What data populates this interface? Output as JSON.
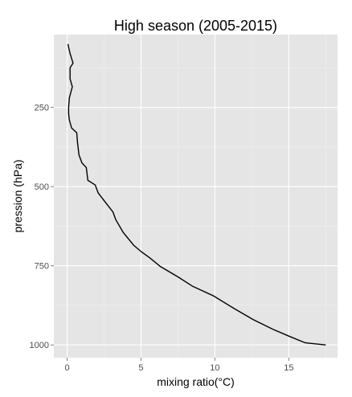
{
  "chart_data": {
    "type": "line",
    "title": "High season (2005-2015)",
    "xlabel": "mixing ratio(°C)",
    "ylabel": "pression (hPa)",
    "xlim": [
      -0.9,
      18.3
    ],
    "ylim": [
      1040,
      20
    ],
    "y_reversed": true,
    "x_ticks": [
      "0",
      "5",
      "10",
      "15"
    ],
    "x_tick_values": [
      0,
      5,
      10,
      15
    ],
    "y_ticks": [
      "250",
      "500",
      "750",
      "1000"
    ],
    "y_tick_values": [
      250,
      500,
      750,
      1000
    ],
    "grid": true,
    "background": "#e5e5e5",
    "line_color": "#000000",
    "series": [
      {
        "x": [
          0.05,
          0.2,
          0.4,
          0.2,
          0.2,
          0.35,
          0.15,
          0.1,
          0.1,
          0.15,
          0.3,
          0.65,
          0.7,
          0.8,
          1.0,
          1.3,
          1.4,
          1.9,
          2.1,
          2.6,
          3.1,
          3.3,
          3.8,
          4.5,
          5.0,
          5.6,
          6.3,
          7.5,
          8.5,
          9.9,
          11.3,
          12.6,
          13.9,
          15.0,
          16.1,
          17.5
        ],
        "y": [
          50,
          80,
          110,
          125,
          160,
          185,
          220,
          250,
          270,
          290,
          315,
          330,
          360,
          400,
          425,
          440,
          480,
          495,
          520,
          550,
          580,
          605,
          645,
          685,
          705,
          725,
          752,
          785,
          815,
          845,
          885,
          920,
          950,
          972,
          993,
          1000
        ]
      }
    ]
  }
}
